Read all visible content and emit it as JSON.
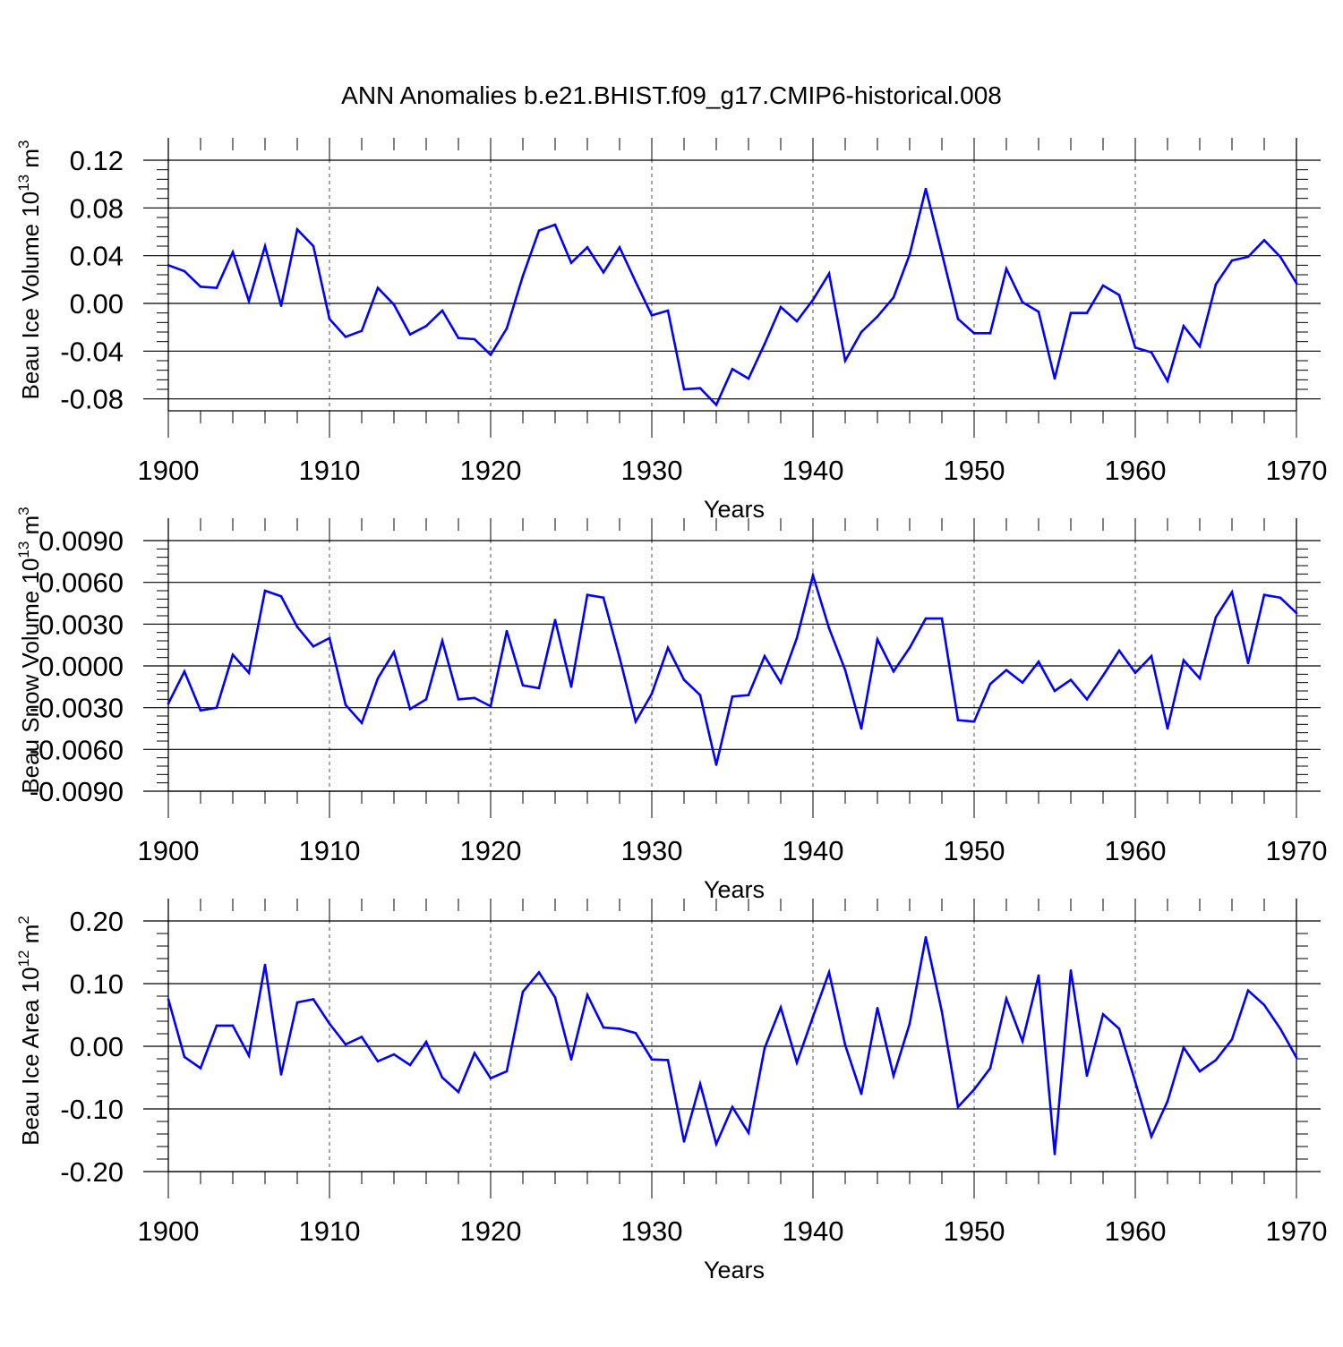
{
  "title": "ANN Anomalies b.e21.BHIST.f09_g17.CMIP6-historical.008",
  "line_color": "#0000ff",
  "chart_data": [
    {
      "type": "line",
      "ylabel": {
        "main": "Beau Ice Volume 10",
        "exp": "13",
        "unit": " m",
        "unit_exp": "3"
      },
      "xlabel": "Years",
      "xlim": [
        1900,
        1970
      ],
      "ylim": [
        -0.09,
        0.12
      ],
      "yticks": [
        0.12,
        0.08,
        0.04,
        0.0,
        -0.04,
        -0.08
      ],
      "ytick_labels": [
        "0.12",
        "0.08",
        "0.04",
        "0.00",
        "-0.04",
        "-0.08"
      ],
      "xticks": [
        1900,
        1910,
        1920,
        1930,
        1940,
        1950,
        1960,
        1970
      ],
      "xtick_labels": [
        "1900",
        "1910",
        "1920",
        "1930",
        "1940",
        "1950",
        "1960",
        "1970"
      ],
      "start_year": 1900,
      "values": [
        0.032,
        0.027,
        0.014,
        0.013,
        0.043,
        0.002,
        0.048,
        -0.002,
        0.062,
        0.048,
        -0.013,
        -0.028,
        -0.023,
        0.013,
        -0.001,
        -0.026,
        -0.019,
        -0.006,
        -0.029,
        -0.03,
        -0.043,
        -0.021,
        0.023,
        0.061,
        0.066,
        0.034,
        0.047,
        0.026,
        0.047,
        0.018,
        -0.01,
        -0.006,
        -0.072,
        -0.071,
        -0.085,
        -0.055,
        -0.063,
        -0.034,
        -0.003,
        -0.015,
        0.003,
        0.025,
        -0.048,
        -0.024,
        -0.011,
        0.005,
        0.041,
        0.096,
        0.042,
        -0.013,
        -0.025,
        -0.025,
        0.029,
        0.001,
        -0.007,
        -0.063,
        -0.008,
        -0.008,
        0.015,
        0.007,
        -0.037,
        -0.041,
        -0.065,
        -0.019,
        -0.036,
        0.016,
        0.036,
        0.039,
        0.053,
        0.039,
        0.017
      ]
    },
    {
      "type": "line",
      "ylabel": {
        "main": "Beau Snow Volume 10",
        "exp": "13",
        "unit": " m",
        "unit_exp": "3"
      },
      "xlabel": "Years",
      "xlim": [
        1900,
        1970
      ],
      "ylim": [
        -0.009,
        0.009
      ],
      "yticks": [
        0.009,
        0.006,
        0.003,
        0.0,
        -0.003,
        -0.006,
        -0.009
      ],
      "ytick_labels": [
        "0.0090",
        "0.0060",
        "0.0030",
        "0.0000",
        "-0.0030",
        "-0.0060",
        "-0.0090"
      ],
      "xticks": [
        1900,
        1910,
        1920,
        1930,
        1940,
        1950,
        1960,
        1970
      ],
      "xtick_labels": [
        "1900",
        "1910",
        "1920",
        "1930",
        "1940",
        "1950",
        "1960",
        "1970"
      ],
      "start_year": 1900,
      "values": [
        -0.0027,
        -0.0004,
        -0.0032,
        -0.003,
        0.0008,
        -0.0005,
        0.0054,
        0.005,
        0.0028,
        0.0014,
        0.002,
        -0.0028,
        -0.0041,
        -0.0009,
        0.001,
        -0.0031,
        -0.0024,
        0.0018,
        -0.0024,
        -0.0023,
        -0.0029,
        0.0025,
        -0.0014,
        -0.0016,
        0.0033,
        -0.0015,
        0.0051,
        0.0049,
        0.0006,
        -0.004,
        -0.002,
        0.0013,
        -0.001,
        -0.0021,
        -0.0071,
        -0.0022,
        -0.0021,
        0.0007,
        -0.0012,
        0.002,
        0.0065,
        0.0027,
        -0.0003,
        -0.0045,
        0.0019,
        -0.0004,
        0.0013,
        0.0034,
        0.0034,
        -0.0039,
        -0.004,
        -0.0013,
        -0.0003,
        -0.0012,
        0.0003,
        -0.0018,
        -0.001,
        -0.0024,
        -0.0007,
        0.0011,
        -0.0005,
        0.0007,
        -0.0045,
        0.0004,
        -0.0009,
        0.0035,
        0.0053,
        0.0002,
        0.0051,
        0.0049,
        0.0038
      ]
    },
    {
      "type": "line",
      "ylabel": {
        "main": "Beau Ice Area 10",
        "exp": "12",
        "unit": " m",
        "unit_exp": "2"
      },
      "xlabel": "Years",
      "xlim": [
        1900,
        1970
      ],
      "ylim": [
        -0.2,
        0.2
      ],
      "yticks": [
        0.2,
        0.1,
        0.0,
        -0.1,
        -0.2
      ],
      "ytick_labels": [
        "0.20",
        "0.10",
        "0.00",
        "-0.10",
        "-0.20"
      ],
      "xticks": [
        1900,
        1910,
        1920,
        1930,
        1940,
        1950,
        1960,
        1970
      ],
      "xtick_labels": [
        "1900",
        "1910",
        "1920",
        "1930",
        "1940",
        "1950",
        "1960",
        "1970"
      ],
      "start_year": 1900,
      "values": [
        0.075,
        -0.017,
        -0.035,
        0.033,
        0.033,
        -0.015,
        0.13,
        -0.045,
        0.07,
        0.075,
        0.036,
        0.003,
        0.015,
        -0.024,
        -0.013,
        -0.03,
        0.007,
        -0.05,
        -0.073,
        -0.011,
        -0.051,
        -0.04,
        0.087,
        0.118,
        0.078,
        -0.021,
        0.082,
        0.03,
        0.028,
        0.021,
        -0.021,
        -0.022,
        -0.152,
        -0.06,
        -0.156,
        -0.097,
        -0.138,
        -0.003,
        0.062,
        -0.026,
        0.047,
        0.118,
        0.002,
        -0.076,
        0.061,
        -0.047,
        0.036,
        0.174,
        0.055,
        -0.097,
        -0.069,
        -0.035,
        0.076,
        0.008,
        0.113,
        -0.172,
        0.121,
        -0.047,
        0.051,
        0.028,
        -0.057,
        -0.144,
        -0.088,
        -0.002,
        -0.04,
        -0.022,
        0.011,
        0.089,
        0.066,
        0.028,
        -0.018
      ]
    }
  ]
}
